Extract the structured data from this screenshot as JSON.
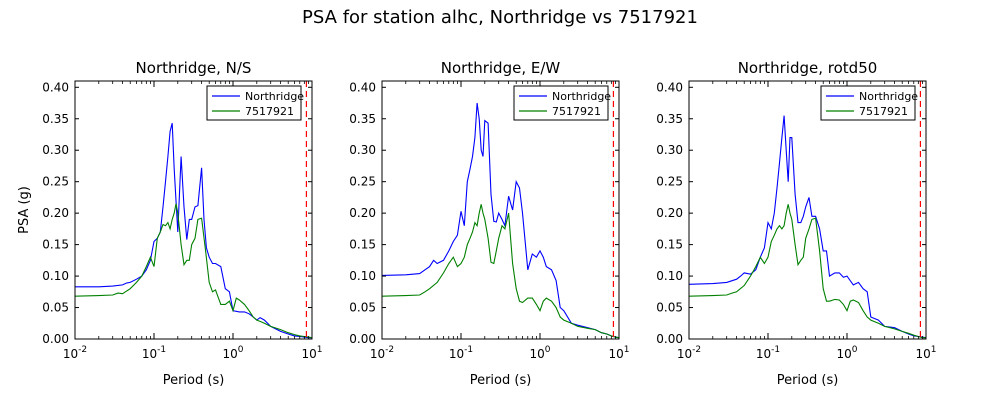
{
  "figure": {
    "suptitle": "PSA for station alhc, Northridge vs 7517921",
    "ylabel": "PSA (g)"
  },
  "colors": {
    "series_1": "#0000ff",
    "series_2": "#008000",
    "marker_line": "#ff0000"
  },
  "chart_data": [
    {
      "type": "line",
      "title": "Northridge, N/S",
      "xlabel": "Period (s)",
      "ylabel": "PSA (g)",
      "xscale": "log",
      "xlim": [
        0.01,
        10
      ],
      "ylim": [
        0,
        0.41
      ],
      "xticks": [
        {
          "value": 0.01,
          "base": "10",
          "exp": "-2"
        },
        {
          "value": 0.1,
          "base": "10",
          "exp": "-1"
        },
        {
          "value": 1,
          "base": "10",
          "exp": "0"
        },
        {
          "value": 10,
          "base": "10",
          "exp": "1"
        }
      ],
      "yticks": [
        "0.00",
        "0.05",
        "0.10",
        "0.15",
        "0.20",
        "0.25",
        "0.30",
        "0.35",
        "0.40"
      ],
      "legend_position": "top-right",
      "vline_x": 8.5,
      "series": [
        {
          "name": "Northridge",
          "color": "#0000ff",
          "x": [
            0.01,
            0.02,
            0.03,
            0.04,
            0.045,
            0.05,
            0.06,
            0.07,
            0.08,
            0.09,
            0.1,
            0.11,
            0.12,
            0.13,
            0.14,
            0.15,
            0.16,
            0.17,
            0.18,
            0.19,
            0.2,
            0.22,
            0.24,
            0.26,
            0.28,
            0.3,
            0.33,
            0.36,
            0.4,
            0.43,
            0.46,
            0.5,
            0.55,
            0.6,
            0.7,
            0.8,
            0.9,
            1.0,
            1.2,
            1.4,
            1.6,
            1.8,
            2.0,
            2.2,
            2.5,
            3.0,
            4.0,
            5.0,
            6.0,
            7.0,
            8.0,
            9.0,
            10.0
          ],
          "y": [
            0.083,
            0.083,
            0.084,
            0.086,
            0.089,
            0.09,
            0.095,
            0.1,
            0.11,
            0.125,
            0.155,
            0.16,
            0.17,
            0.21,
            0.25,
            0.29,
            0.33,
            0.343,
            0.27,
            0.22,
            0.17,
            0.29,
            0.21,
            0.158,
            0.19,
            0.19,
            0.21,
            0.212,
            0.272,
            0.19,
            0.145,
            0.13,
            0.12,
            0.12,
            0.115,
            0.08,
            0.075,
            0.045,
            0.043,
            0.043,
            0.04,
            0.035,
            0.03,
            0.034,
            0.03,
            0.02,
            0.012,
            0.008,
            0.005,
            0.004,
            0.003,
            0.002,
            0.002
          ]
        },
        {
          "name": "7517921",
          "color": "#008000",
          "x": [
            0.01,
            0.02,
            0.03,
            0.035,
            0.04,
            0.05,
            0.06,
            0.07,
            0.08,
            0.09,
            0.1,
            0.11,
            0.12,
            0.13,
            0.14,
            0.15,
            0.16,
            0.17,
            0.18,
            0.19,
            0.2,
            0.22,
            0.24,
            0.26,
            0.28,
            0.3,
            0.33,
            0.36,
            0.4,
            0.45,
            0.5,
            0.55,
            0.6,
            0.7,
            0.8,
            0.9,
            1.0,
            1.1,
            1.2,
            1.4,
            1.6,
            1.8,
            2.0,
            2.2,
            2.5,
            3.0,
            4.0,
            5.0,
            6.0,
            7.0,
            8.0,
            9.0,
            10.0
          ],
          "y": [
            0.068,
            0.069,
            0.07,
            0.073,
            0.072,
            0.08,
            0.09,
            0.1,
            0.115,
            0.13,
            0.115,
            0.16,
            0.17,
            0.182,
            0.18,
            0.185,
            0.175,
            0.19,
            0.2,
            0.215,
            0.2,
            0.15,
            0.118,
            0.125,
            0.125,
            0.15,
            0.16,
            0.19,
            0.192,
            0.14,
            0.09,
            0.075,
            0.078,
            0.055,
            0.055,
            0.06,
            0.045,
            0.065,
            0.062,
            0.055,
            0.045,
            0.035,
            0.03,
            0.028,
            0.025,
            0.02,
            0.015,
            0.01,
            0.007,
            0.005,
            0.004,
            0.003,
            0.002
          ]
        }
      ]
    },
    {
      "type": "line",
      "title": "Northridge, E/W",
      "xlabel": "Period (s)",
      "ylabel": "",
      "xscale": "log",
      "xlim": [
        0.01,
        10
      ],
      "ylim": [
        0,
        0.41
      ],
      "xticks": [
        {
          "value": 0.01,
          "base": "10",
          "exp": "-2"
        },
        {
          "value": 0.1,
          "base": "10",
          "exp": "-1"
        },
        {
          "value": 1,
          "base": "10",
          "exp": "0"
        },
        {
          "value": 10,
          "base": "10",
          "exp": "1"
        }
      ],
      "yticks": [
        "0.00",
        "0.05",
        "0.10",
        "0.15",
        "0.20",
        "0.25",
        "0.30",
        "0.35",
        "0.40"
      ],
      "legend_position": "top-right",
      "vline_x": 8.5,
      "series": [
        {
          "name": "Northridge",
          "color": "#0000ff",
          "x": [
            0.01,
            0.02,
            0.03,
            0.035,
            0.04,
            0.045,
            0.05,
            0.06,
            0.07,
            0.08,
            0.09,
            0.1,
            0.11,
            0.12,
            0.13,
            0.14,
            0.15,
            0.16,
            0.17,
            0.18,
            0.19,
            0.2,
            0.22,
            0.24,
            0.26,
            0.28,
            0.3,
            0.33,
            0.36,
            0.4,
            0.45,
            0.5,
            0.55,
            0.6,
            0.7,
            0.8,
            0.9,
            1.0,
            1.1,
            1.2,
            1.4,
            1.6,
            1.8,
            2.0,
            2.5,
            3.0,
            4.0,
            5.0,
            6.0,
            7.0,
            8.0,
            9.0,
            10.0
          ],
          "y": [
            0.101,
            0.102,
            0.104,
            0.11,
            0.115,
            0.125,
            0.12,
            0.125,
            0.14,
            0.155,
            0.165,
            0.203,
            0.18,
            0.25,
            0.27,
            0.29,
            0.32,
            0.375,
            0.35,
            0.3,
            0.29,
            0.347,
            0.343,
            0.23,
            0.187,
            0.186,
            0.2,
            0.19,
            0.18,
            0.227,
            0.205,
            0.25,
            0.24,
            0.2,
            0.11,
            0.135,
            0.13,
            0.14,
            0.13,
            0.115,
            0.11,
            0.093,
            0.05,
            0.045,
            0.025,
            0.022,
            0.018,
            0.015,
            0.01,
            0.008,
            0.005,
            0.003,
            0.002
          ]
        },
        {
          "name": "7517921",
          "color": "#008000",
          "x": [
            0.01,
            0.02,
            0.03,
            0.035,
            0.04,
            0.05,
            0.06,
            0.07,
            0.08,
            0.09,
            0.1,
            0.11,
            0.12,
            0.13,
            0.14,
            0.15,
            0.16,
            0.17,
            0.18,
            0.19,
            0.2,
            0.22,
            0.24,
            0.26,
            0.28,
            0.3,
            0.33,
            0.36,
            0.4,
            0.45,
            0.5,
            0.55,
            0.6,
            0.7,
            0.8,
            0.9,
            1.0,
            1.1,
            1.2,
            1.4,
            1.6,
            1.8,
            2.0,
            2.5,
            3.0,
            4.0,
            5.0,
            6.0,
            7.0,
            8.0,
            9.0,
            10.0
          ],
          "y": [
            0.068,
            0.069,
            0.07,
            0.075,
            0.08,
            0.09,
            0.105,
            0.12,
            0.13,
            0.115,
            0.12,
            0.13,
            0.15,
            0.16,
            0.17,
            0.185,
            0.18,
            0.2,
            0.214,
            0.2,
            0.19,
            0.16,
            0.122,
            0.12,
            0.14,
            0.16,
            0.18,
            0.175,
            0.2,
            0.12,
            0.08,
            0.06,
            0.058,
            0.065,
            0.065,
            0.055,
            0.045,
            0.06,
            0.065,
            0.06,
            0.05,
            0.035,
            0.03,
            0.025,
            0.02,
            0.017,
            0.015,
            0.01,
            0.008,
            0.005,
            0.003,
            0.002
          ]
        }
      ]
    },
    {
      "type": "line",
      "title": "Northridge, rotd50",
      "xlabel": "Period (s)",
      "ylabel": "",
      "xscale": "log",
      "xlim": [
        0.01,
        10
      ],
      "ylim": [
        0,
        0.41
      ],
      "xticks": [
        {
          "value": 0.01,
          "base": "10",
          "exp": "-2"
        },
        {
          "value": 0.1,
          "base": "10",
          "exp": "-1"
        },
        {
          "value": 1,
          "base": "10",
          "exp": "0"
        },
        {
          "value": 10,
          "base": "10",
          "exp": "1"
        }
      ],
      "yticks": [
        "0.00",
        "0.05",
        "0.10",
        "0.15",
        "0.20",
        "0.25",
        "0.30",
        "0.35",
        "0.40"
      ],
      "legend_position": "top-right",
      "vline_x": 8.5,
      "series": [
        {
          "name": "Northridge",
          "color": "#0000ff",
          "x": [
            0.01,
            0.02,
            0.03,
            0.04,
            0.045,
            0.05,
            0.06,
            0.07,
            0.08,
            0.09,
            0.1,
            0.11,
            0.12,
            0.13,
            0.14,
            0.15,
            0.16,
            0.17,
            0.18,
            0.19,
            0.2,
            0.22,
            0.24,
            0.26,
            0.28,
            0.3,
            0.33,
            0.36,
            0.4,
            0.45,
            0.5,
            0.55,
            0.6,
            0.7,
            0.8,
            0.9,
            1.0,
            1.2,
            1.4,
            1.6,
            1.8,
            2.0,
            2.5,
            3.0,
            4.0,
            5.0,
            6.0,
            7.0,
            8.0,
            9.0,
            10.0
          ],
          "y": [
            0.087,
            0.088,
            0.09,
            0.095,
            0.1,
            0.105,
            0.103,
            0.11,
            0.13,
            0.145,
            0.185,
            0.175,
            0.2,
            0.24,
            0.28,
            0.32,
            0.355,
            0.3,
            0.25,
            0.32,
            0.32,
            0.23,
            0.185,
            0.185,
            0.195,
            0.21,
            0.225,
            0.195,
            0.195,
            0.175,
            0.14,
            0.14,
            0.1,
            0.105,
            0.105,
            0.098,
            0.1,
            0.086,
            0.09,
            0.08,
            0.075,
            0.035,
            0.03,
            0.02,
            0.018,
            0.012,
            0.008,
            0.005,
            0.004,
            0.003,
            0.002
          ]
        },
        {
          "name": "7517921",
          "color": "#008000",
          "x": [
            0.01,
            0.02,
            0.03,
            0.035,
            0.04,
            0.05,
            0.06,
            0.07,
            0.08,
            0.09,
            0.1,
            0.11,
            0.12,
            0.13,
            0.14,
            0.15,
            0.16,
            0.17,
            0.18,
            0.19,
            0.2,
            0.22,
            0.24,
            0.26,
            0.28,
            0.3,
            0.33,
            0.36,
            0.4,
            0.45,
            0.5,
            0.55,
            0.6,
            0.7,
            0.8,
            0.9,
            1.0,
            1.1,
            1.2,
            1.4,
            1.6,
            1.8,
            2.0,
            2.5,
            3.0,
            4.0,
            5.0,
            6.0,
            7.0,
            8.0,
            9.0,
            10.0
          ],
          "y": [
            0.068,
            0.069,
            0.07,
            0.073,
            0.075,
            0.085,
            0.1,
            0.115,
            0.13,
            0.12,
            0.13,
            0.155,
            0.165,
            0.175,
            0.18,
            0.175,
            0.18,
            0.2,
            0.214,
            0.2,
            0.19,
            0.15,
            0.118,
            0.125,
            0.13,
            0.16,
            0.175,
            0.19,
            0.192,
            0.14,
            0.08,
            0.06,
            0.06,
            0.063,
            0.062,
            0.055,
            0.045,
            0.06,
            0.062,
            0.058,
            0.045,
            0.035,
            0.03,
            0.025,
            0.02,
            0.016,
            0.012,
            0.009,
            0.006,
            0.004,
            0.002,
            0.002
          ]
        }
      ]
    }
  ]
}
